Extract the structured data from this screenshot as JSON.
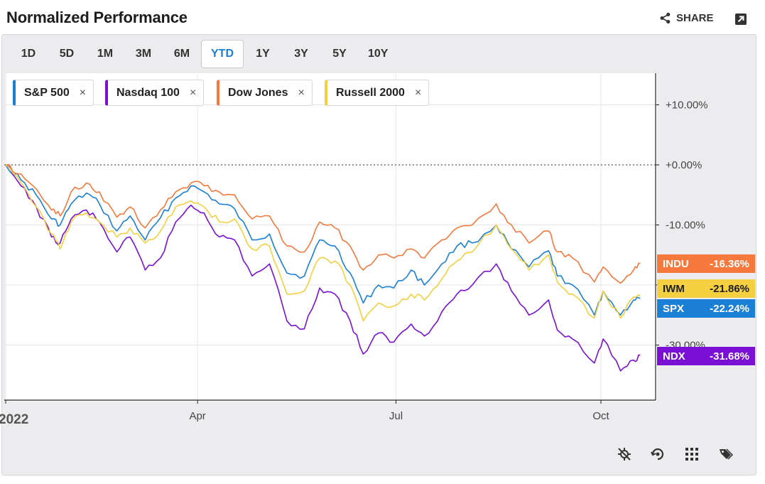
{
  "header": {
    "title": "Normalized Performance",
    "share_label": "SHARE"
  },
  "ranges": [
    {
      "label": "1D",
      "active": false
    },
    {
      "label": "5D",
      "active": false
    },
    {
      "label": "1M",
      "active": false
    },
    {
      "label": "3M",
      "active": false
    },
    {
      "label": "6M",
      "active": false
    },
    {
      "label": "YTD",
      "active": true
    },
    {
      "label": "1Y",
      "active": false
    },
    {
      "label": "3Y",
      "active": false
    },
    {
      "label": "5Y",
      "active": false
    },
    {
      "label": "10Y",
      "active": false
    }
  ],
  "legend": [
    {
      "name": "S&P 500",
      "color": "#1b7fd6"
    },
    {
      "name": "Nasdaq 100",
      "color": "#7a10d4"
    },
    {
      "name": "Dow Jones",
      "color": "#f5793d"
    },
    {
      "name": "Russell 2000",
      "color": "#f4cf3f"
    }
  ],
  "legend_remove_glyph": "×",
  "badges": [
    {
      "ticker": "INDU",
      "value": "-16.36%",
      "color": "#f5793d",
      "text_color": "#ffffff"
    },
    {
      "ticker": "IWM",
      "value": "-21.86%",
      "color": "#f4cf3f",
      "text_color": "#1d1d1f"
    },
    {
      "ticker": "SPX",
      "value": "-22.24%",
      "color": "#1b7fd6",
      "text_color": "#ffffff"
    },
    {
      "ticker": "NDX",
      "value": "-31.68%",
      "color": "#7a10d4",
      "text_color": "#ffffff"
    }
  ],
  "toolbar_icons": [
    "crosshair-off-icon",
    "reset-zoom-icon",
    "grid-icon",
    "tags-icon"
  ],
  "chart_data": {
    "type": "line",
    "y_unit": "%",
    "ylim": [
      -38,
      15
    ],
    "y_ticks": [
      {
        "value": 10,
        "label": "+10.00%"
      },
      {
        "value": 0,
        "label": "+0.00%"
      },
      {
        "value": -10,
        "label": "-10.00%"
      },
      {
        "value": -20,
        "label": ""
      },
      {
        "value": -30,
        "label": "-30.00%"
      }
    ],
    "x_ticks": [
      {
        "date": "2022-01-03",
        "label": "2022"
      },
      {
        "date": "2022-04-01",
        "label": "Apr"
      },
      {
        "date": "2022-07-01",
        "label": "Jul"
      },
      {
        "date": "2022-10-03",
        "label": "Oct"
      }
    ],
    "xlim": [
      "2022-01-03",
      "2022-10-31"
    ],
    "reference_line": 0,
    "grid": true,
    "series": [
      {
        "name": "S&P 500",
        "color": "#1b7fd6",
        "points": [
          [
            "2022-01-03",
            0
          ],
          [
            "2022-01-10",
            -2.5
          ],
          [
            "2022-01-17",
            -5
          ],
          [
            "2022-01-24",
            -9
          ],
          [
            "2022-01-28",
            -10
          ],
          [
            "2022-02-02",
            -6.5
          ],
          [
            "2022-02-09",
            -4.7
          ],
          [
            "2022-02-15",
            -6.5
          ],
          [
            "2022-02-23",
            -11
          ],
          [
            "2022-03-01",
            -8.5
          ],
          [
            "2022-03-08",
            -12.5
          ],
          [
            "2022-03-15",
            -8.8
          ],
          [
            "2022-03-22",
            -5.5
          ],
          [
            "2022-03-29",
            -3.5
          ],
          [
            "2022-04-04",
            -4.5
          ],
          [
            "2022-04-11",
            -6.5
          ],
          [
            "2022-04-18",
            -7.3
          ],
          [
            "2022-04-26",
            -12.5
          ],
          [
            "2022-05-04",
            -11.5
          ],
          [
            "2022-05-12",
            -18
          ],
          [
            "2022-05-20",
            -18.5
          ],
          [
            "2022-05-27",
            -12.5
          ],
          [
            "2022-06-03",
            -13.5
          ],
          [
            "2022-06-10",
            -18
          ],
          [
            "2022-06-16",
            -23
          ],
          [
            "2022-06-23",
            -20
          ],
          [
            "2022-06-30",
            -20.5
          ],
          [
            "2022-07-08",
            -17.5
          ],
          [
            "2022-07-14",
            -20
          ],
          [
            "2022-07-22",
            -16.5
          ],
          [
            "2022-07-29",
            -13.5
          ],
          [
            "2022-08-05",
            -13
          ],
          [
            "2022-08-16",
            -10
          ],
          [
            "2022-08-23",
            -14
          ],
          [
            "2022-08-31",
            -17
          ],
          [
            "2022-09-09",
            -14.3
          ],
          [
            "2022-09-13",
            -18.5
          ],
          [
            "2022-09-20",
            -20
          ],
          [
            "2022-09-30",
            -25
          ],
          [
            "2022-10-04",
            -21
          ],
          [
            "2022-10-12",
            -25
          ],
          [
            "2022-10-18",
            -22.5
          ],
          [
            "2022-10-21",
            -22.24
          ]
        ]
      },
      {
        "name": "Nasdaq 100",
        "color": "#7a10d4",
        "points": [
          [
            "2022-01-03",
            0
          ],
          [
            "2022-01-10",
            -3.5
          ],
          [
            "2022-01-17",
            -7
          ],
          [
            "2022-01-24",
            -12
          ],
          [
            "2022-01-28",
            -13
          ],
          [
            "2022-02-02",
            -9
          ],
          [
            "2022-02-09",
            -7.5
          ],
          [
            "2022-02-15",
            -9.5
          ],
          [
            "2022-02-23",
            -14.5
          ],
          [
            "2022-03-01",
            -12
          ],
          [
            "2022-03-08",
            -17.5
          ],
          [
            "2022-03-15",
            -15.5
          ],
          [
            "2022-03-22",
            -9.5
          ],
          [
            "2022-03-29",
            -6.7
          ],
          [
            "2022-04-04",
            -8
          ],
          [
            "2022-04-11",
            -12
          ],
          [
            "2022-04-18",
            -12.5
          ],
          [
            "2022-04-26",
            -18.5
          ],
          [
            "2022-05-04",
            -16.5
          ],
          [
            "2022-05-12",
            -26
          ],
          [
            "2022-05-20",
            -27.3
          ],
          [
            "2022-05-27",
            -20.5
          ],
          [
            "2022-06-03",
            -21.5
          ],
          [
            "2022-06-10",
            -26
          ],
          [
            "2022-06-16",
            -31.5
          ],
          [
            "2022-06-23",
            -28
          ],
          [
            "2022-06-30",
            -29.5
          ],
          [
            "2022-07-08",
            -26.5
          ],
          [
            "2022-07-14",
            -28.5
          ],
          [
            "2022-07-22",
            -24.5
          ],
          [
            "2022-07-29",
            -21.5
          ],
          [
            "2022-08-05",
            -20
          ],
          [
            "2022-08-16",
            -16.5
          ],
          [
            "2022-08-23",
            -21
          ],
          [
            "2022-08-31",
            -25
          ],
          [
            "2022-09-09",
            -22.5
          ],
          [
            "2022-09-13",
            -27.5
          ],
          [
            "2022-09-20",
            -29
          ],
          [
            "2022-09-30",
            -33
          ],
          [
            "2022-10-04",
            -29
          ],
          [
            "2022-10-12",
            -34.3
          ],
          [
            "2022-10-18",
            -32.5
          ],
          [
            "2022-10-21",
            -31.68
          ]
        ]
      },
      {
        "name": "Dow Jones",
        "color": "#f5793d",
        "points": [
          [
            "2022-01-03",
            0
          ],
          [
            "2022-01-10",
            -1.5
          ],
          [
            "2022-01-17",
            -4
          ],
          [
            "2022-01-24",
            -7.5
          ],
          [
            "2022-01-28",
            -8.5
          ],
          [
            "2022-02-02",
            -4.5
          ],
          [
            "2022-02-09",
            -3
          ],
          [
            "2022-02-15",
            -4.5
          ],
          [
            "2022-02-23",
            -8.7
          ],
          [
            "2022-03-01",
            -7
          ],
          [
            "2022-03-08",
            -10.5
          ],
          [
            "2022-03-15",
            -7.5
          ],
          [
            "2022-03-22",
            -4.5
          ],
          [
            "2022-03-29",
            -3
          ],
          [
            "2022-04-04",
            -3.5
          ],
          [
            "2022-04-11",
            -4.5
          ],
          [
            "2022-04-18",
            -5
          ],
          [
            "2022-04-26",
            -9
          ],
          [
            "2022-05-04",
            -8.5
          ],
          [
            "2022-05-12",
            -13.5
          ],
          [
            "2022-05-20",
            -14.5
          ],
          [
            "2022-05-27",
            -9.5
          ],
          [
            "2022-06-03",
            -10.5
          ],
          [
            "2022-06-10",
            -13.5
          ],
          [
            "2022-06-16",
            -17.5
          ],
          [
            "2022-06-23",
            -15
          ],
          [
            "2022-06-30",
            -15.5
          ],
          [
            "2022-07-08",
            -14
          ],
          [
            "2022-07-14",
            -15.5
          ],
          [
            "2022-07-22",
            -12.5
          ],
          [
            "2022-07-29",
            -10.5
          ],
          [
            "2022-08-05",
            -10
          ],
          [
            "2022-08-16",
            -6.5
          ],
          [
            "2022-08-23",
            -10
          ],
          [
            "2022-08-31",
            -13
          ],
          [
            "2022-09-09",
            -11
          ],
          [
            "2022-09-13",
            -14.5
          ],
          [
            "2022-09-20",
            -15.5
          ],
          [
            "2022-09-30",
            -19.5
          ],
          [
            "2022-10-04",
            -17
          ],
          [
            "2022-10-12",
            -19.7
          ],
          [
            "2022-10-18",
            -17.5
          ],
          [
            "2022-10-21",
            -16.36
          ]
        ]
      },
      {
        "name": "Russell 2000",
        "color": "#f4cf3f",
        "points": [
          [
            "2022-01-03",
            0
          ],
          [
            "2022-01-10",
            -3
          ],
          [
            "2022-01-17",
            -7
          ],
          [
            "2022-01-24",
            -11.5
          ],
          [
            "2022-01-28",
            -14
          ],
          [
            "2022-02-02",
            -9.5
          ],
          [
            "2022-02-09",
            -8
          ],
          [
            "2022-02-15",
            -9.5
          ],
          [
            "2022-02-23",
            -12
          ],
          [
            "2022-03-01",
            -10.5
          ],
          [
            "2022-03-08",
            -13
          ],
          [
            "2022-03-15",
            -11
          ],
          [
            "2022-03-22",
            -7
          ],
          [
            "2022-03-29",
            -6
          ],
          [
            "2022-04-04",
            -7
          ],
          [
            "2022-04-11",
            -9.5
          ],
          [
            "2022-04-18",
            -9
          ],
          [
            "2022-04-26",
            -14
          ],
          [
            "2022-05-04",
            -13.5
          ],
          [
            "2022-05-12",
            -21.5
          ],
          [
            "2022-05-20",
            -21
          ],
          [
            "2022-05-27",
            -15.5
          ],
          [
            "2022-06-03",
            -16
          ],
          [
            "2022-06-10",
            -20
          ],
          [
            "2022-06-16",
            -26
          ],
          [
            "2022-06-23",
            -23
          ],
          [
            "2022-06-30",
            -23.5
          ],
          [
            "2022-07-08",
            -21.5
          ],
          [
            "2022-07-14",
            -22.5
          ],
          [
            "2022-07-22",
            -19
          ],
          [
            "2022-07-29",
            -16
          ],
          [
            "2022-08-05",
            -14.5
          ],
          [
            "2022-08-16",
            -10
          ],
          [
            "2022-08-23",
            -14
          ],
          [
            "2022-08-31",
            -17.5
          ],
          [
            "2022-09-09",
            -15
          ],
          [
            "2022-09-13",
            -19.5
          ],
          [
            "2022-09-20",
            -21.5
          ],
          [
            "2022-09-30",
            -25.5
          ],
          [
            "2022-10-04",
            -21
          ],
          [
            "2022-10-12",
            -25.5
          ],
          [
            "2022-10-18",
            -22
          ],
          [
            "2022-10-21",
            -21.86
          ]
        ]
      }
    ]
  }
}
